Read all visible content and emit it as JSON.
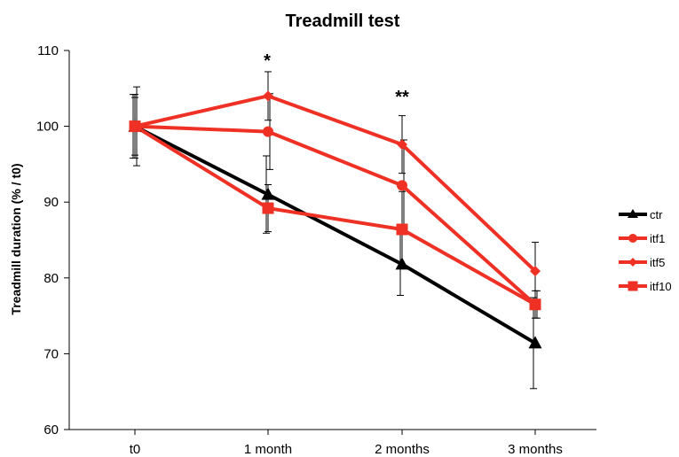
{
  "chart_data": {
    "type": "line",
    "title": "Treadmill test",
    "xlabel": "",
    "ylabel": "Treadmill duration (% / t0)",
    "categories": [
      "t0",
      "1 month",
      "2 months",
      "3 months"
    ],
    "ylim": [
      60,
      110
    ],
    "yticks": [
      "60",
      "70",
      "80",
      "90",
      "100",
      "110"
    ],
    "grid": false,
    "legend_position": "right",
    "series": [
      {
        "name": "ctr",
        "color": "#000000",
        "marker": "triangle",
        "values": [
          100,
          91.0,
          81.8,
          71.4
        ],
        "errors": [
          4.2,
          5.1,
          4.1,
          6.0
        ]
      },
      {
        "name": "itf1",
        "color": "#ee3124",
        "marker": "circle",
        "values": [
          100,
          99.3,
          92.2,
          76.5
        ],
        "errors": [
          5.2,
          5.0,
          6.0,
          1.8
        ]
      },
      {
        "name": "itf5",
        "color": "#ee3124",
        "marker": "diamond",
        "values": [
          100,
          104.0,
          97.6,
          80.9
        ],
        "errors": [
          3.8,
          3.2,
          3.8,
          3.8
        ]
      },
      {
        "name": "itf10",
        "color": "#ee3124",
        "marker": "square",
        "values": [
          100,
          89.2,
          86.4,
          76.5
        ],
        "errors": [
          4.2,
          3.1,
          5.0,
          1.8
        ]
      }
    ],
    "annotations": [
      {
        "text": "*",
        "category": "1 month"
      },
      {
        "text": "**",
        "category": "2 months"
      }
    ]
  }
}
